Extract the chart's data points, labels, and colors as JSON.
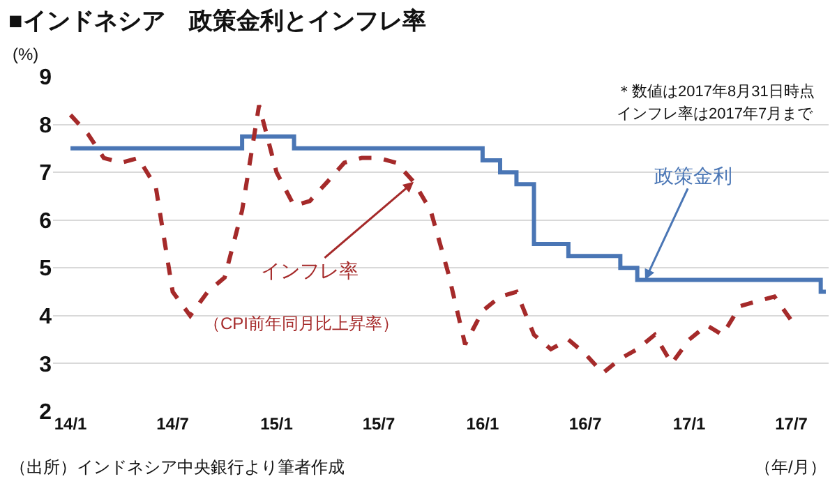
{
  "chart_data": {
    "type": "line",
    "title": "■インドネシア　政策金利とインフレ率",
    "ylabel": "(%)",
    "xlabel": "（年/月）",
    "xlim": [
      "2013-12-01",
      "2017-09-05"
    ],
    "xticks": [
      {
        "value": "2014-01",
        "label": "14/1"
      },
      {
        "value": "2014-07",
        "label": "14/7"
      },
      {
        "value": "2015-01",
        "label": "15/1"
      },
      {
        "value": "2015-07",
        "label": "15/7"
      },
      {
        "value": "2016-01",
        "label": "16/1"
      },
      {
        "value": "2016-07",
        "label": "16/7"
      },
      {
        "value": "2017-01",
        "label": "17/1"
      },
      {
        "value": "2017-07",
        "label": "17/7"
      }
    ],
    "ylim": [
      2,
      9
    ],
    "yticks": [
      2,
      3,
      4,
      5,
      6,
      7,
      8,
      9
    ],
    "grid": "y",
    "series": [
      {
        "type": "step",
        "color": "#4a76b5",
        "line_style": "solid",
        "x": [
          "2014-01",
          "2014-11",
          "2015-02",
          "2016-01",
          "2016-02",
          "2016-03",
          "2016-04",
          "2016-06",
          "2016-09",
          "2016-10",
          "2017-08-22",
          "2017-08-31"
        ],
        "values": [
          7.5,
          7.75,
          7.5,
          7.25,
          7.0,
          6.75,
          5.5,
          5.25,
          5.0,
          4.75,
          4.5,
          4.5
        ]
      },
      {
        "color": "#a52a2a",
        "line_style": "dashed",
        "x": [
          "2014-01",
          "2014-02",
          "2014-03",
          "2014-04",
          "2014-05",
          "2014-06",
          "2014-07",
          "2014-08",
          "2014-09",
          "2014-10",
          "2014-11",
          "2014-12",
          "2015-01",
          "2015-02",
          "2015-03",
          "2015-04",
          "2015-05",
          "2015-06",
          "2015-07",
          "2015-08",
          "2015-09",
          "2015-10",
          "2015-11",
          "2015-12",
          "2016-01",
          "2016-02",
          "2016-03",
          "2016-04",
          "2016-05",
          "2016-06",
          "2016-07",
          "2016-08",
          "2016-09",
          "2016-10",
          "2016-11",
          "2016-12",
          "2017-01",
          "2017-02",
          "2017-03",
          "2017-04",
          "2017-05",
          "2017-06",
          "2017-07"
        ],
        "values": [
          8.2,
          7.8,
          7.3,
          7.2,
          7.3,
          6.7,
          4.5,
          4.0,
          4.5,
          4.8,
          6.2,
          8.4,
          7.0,
          6.3,
          6.4,
          6.8,
          7.2,
          7.3,
          7.3,
          7.2,
          6.8,
          6.2,
          4.9,
          3.4,
          4.1,
          4.4,
          4.5,
          3.6,
          3.3,
          3.5,
          3.2,
          2.8,
          3.1,
          3.3,
          3.6,
          3.0,
          3.5,
          3.8,
          3.6,
          4.2,
          4.3,
          4.4,
          3.9
        ]
      }
    ],
    "annotations": [
      {
        "text": "政策金利",
        "x": "2016-10-15",
        "y": 4.75
      },
      {
        "text": "インフレ率",
        "x": "2015-09",
        "y": 6.8
      },
      "（CPI前年同月比上昇率）",
      "＊数値は2017年8月31日時点",
      "インフレ率は2017年7月まで",
      "（出所）インドネシア中央銀行より筆者作成"
    ]
  }
}
